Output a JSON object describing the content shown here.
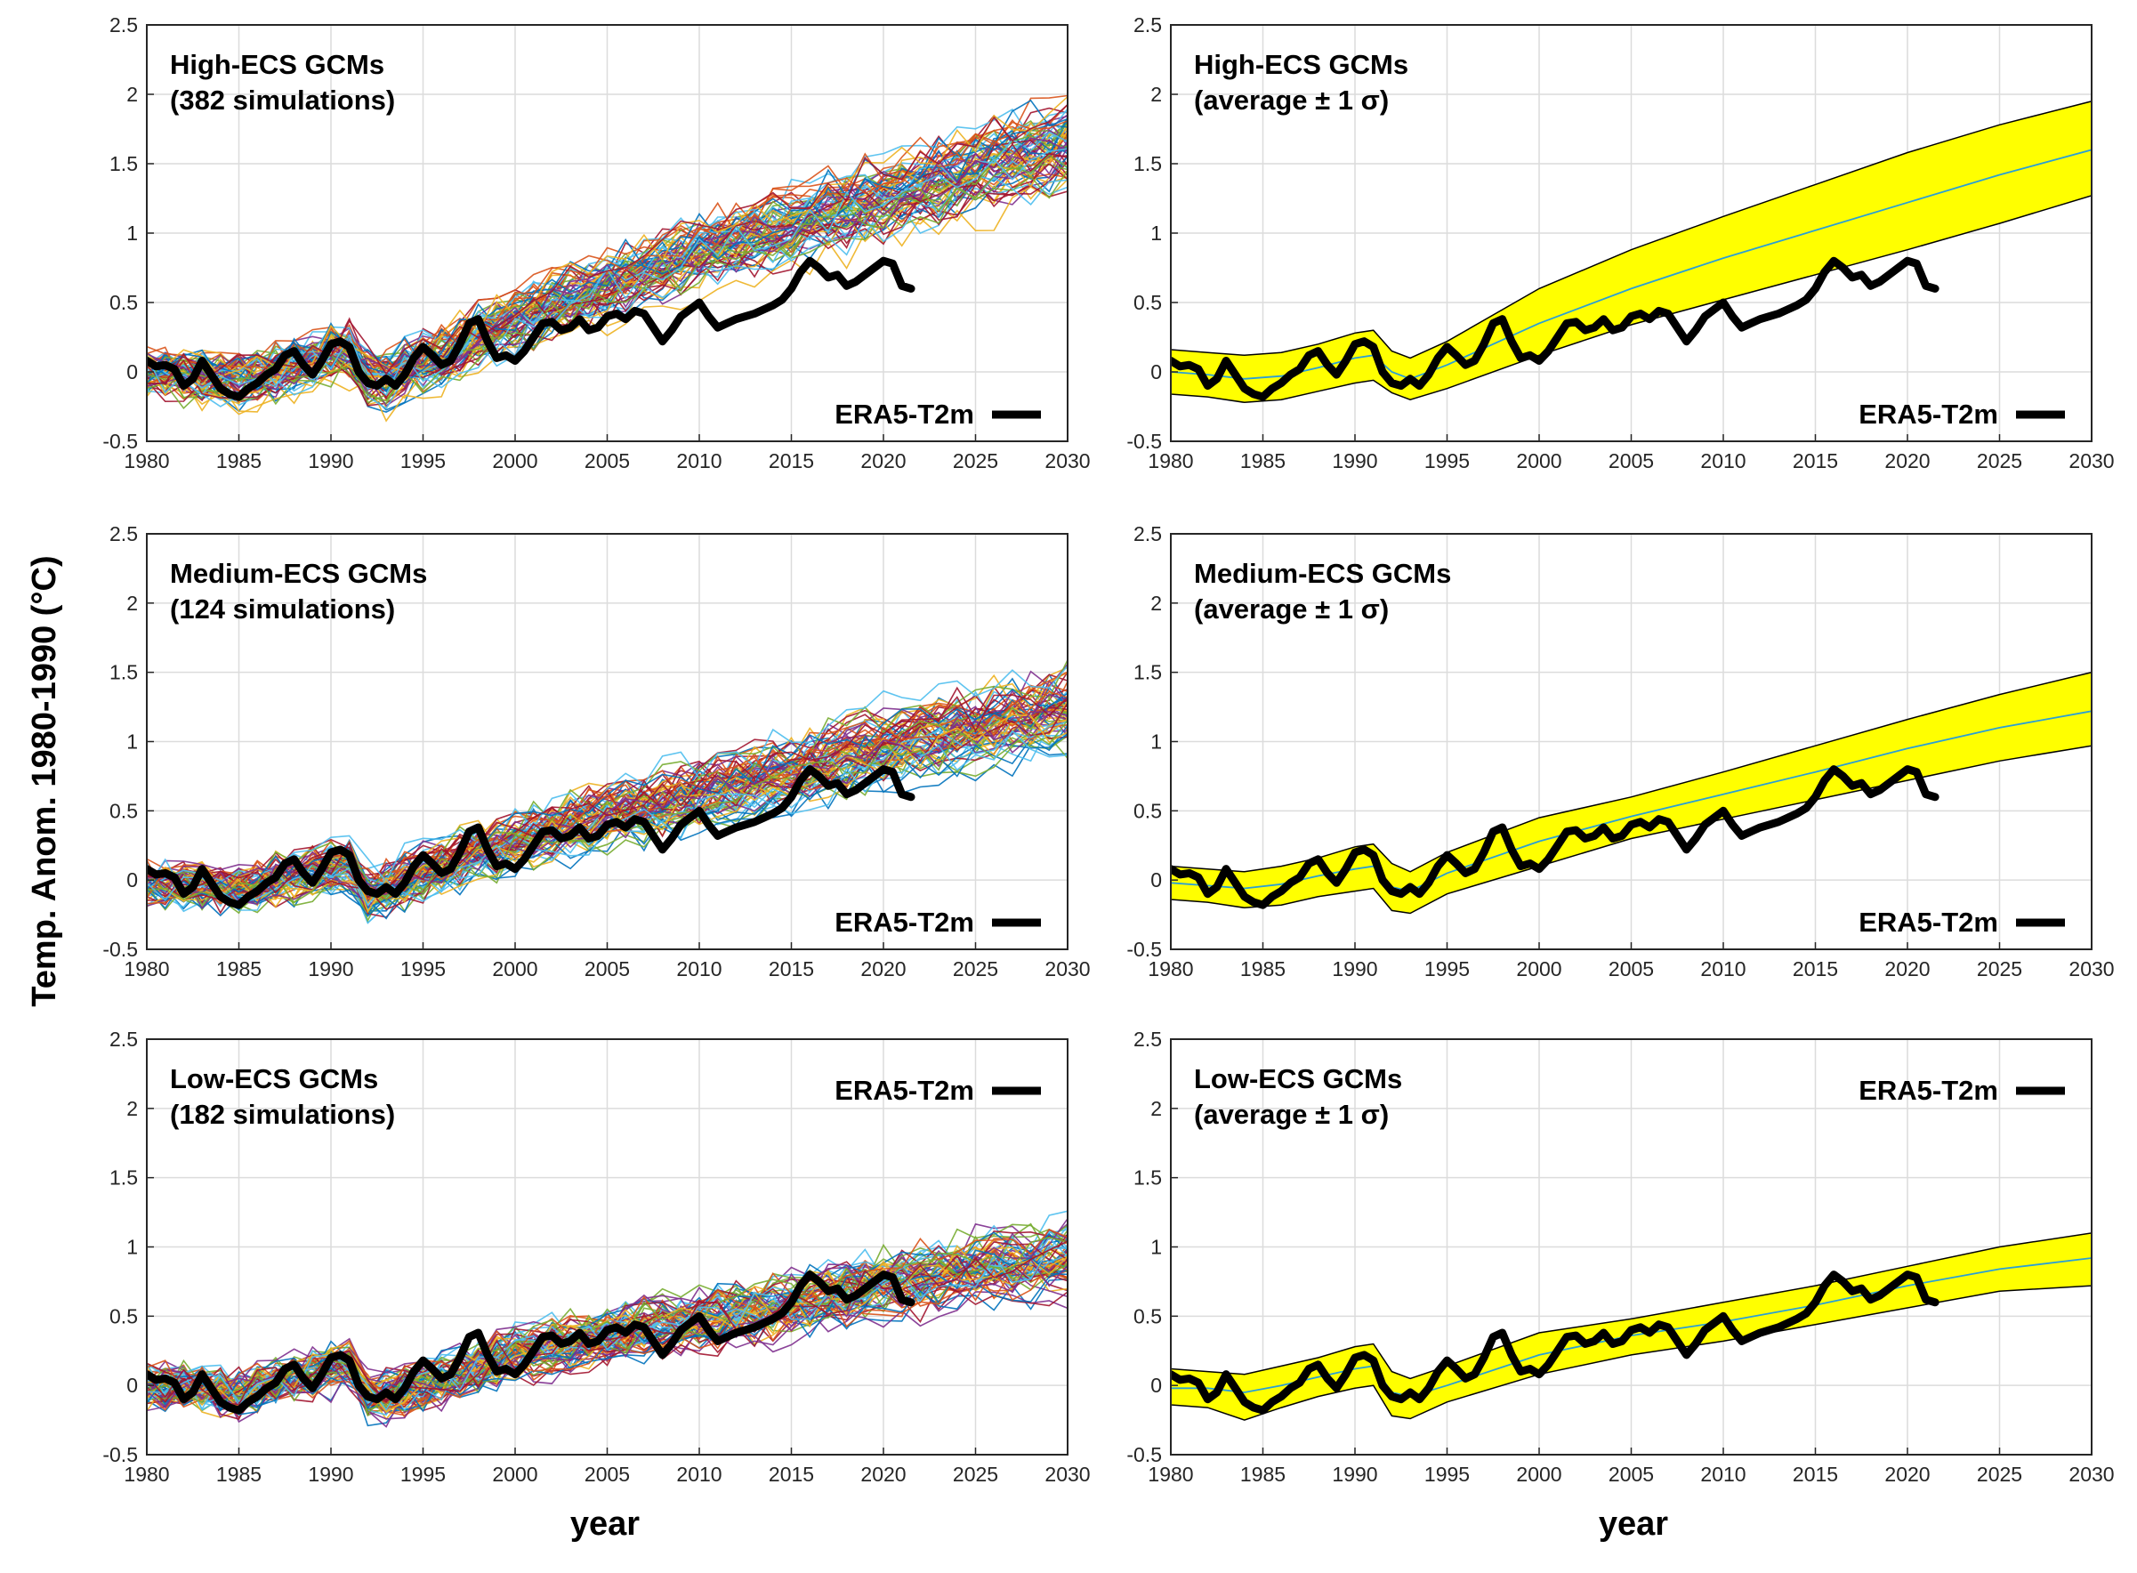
{
  "figure": {
    "ylabel": "Temp. Anom. 1980-1990 (°C)",
    "xlabel": "year",
    "colors": {
      "observation": "#000000",
      "band_fill": "#ffff00",
      "band_edge": "#000000",
      "mean_line": "#2a9fd6",
      "simulations": [
        "#0072bd",
        "#d95319",
        "#edb120",
        "#7e2f8e",
        "#77ac30",
        "#4dbeee",
        "#a2142f"
      ]
    }
  },
  "chart_data": [
    {
      "type": "line",
      "id": "high-ensemble",
      "title_lines": [
        "High-ECS GCMs",
        "(382 simulations)"
      ],
      "legend": "ERA5-T2m",
      "legend_position": "bottom-right",
      "ensemble_size": 382,
      "xlim": [
        1980,
        2030
      ],
      "ylim": [
        -0.5,
        2.5
      ],
      "xticks": [
        "1980",
        "1985",
        "1990",
        "1995",
        "2000",
        "2005",
        "2010",
        "2015",
        "2020",
        "2025",
        "2030"
      ],
      "yticks": [
        "-0.5",
        "0",
        "0.5",
        "1",
        "1.5",
        "2",
        "2.5"
      ],
      "grid": true,
      "ensemble_trend": {
        "x": [
          1980,
          1985,
          1990,
          1991,
          1992,
          1993,
          1995,
          2000,
          2005,
          2010,
          2015,
          2020,
          2025,
          2030
        ],
        "y": [
          -0.02,
          -0.08,
          0.1,
          0.12,
          -0.05,
          -0.08,
          0.05,
          0.35,
          0.6,
          0.82,
          1.02,
          1.22,
          1.42,
          1.6
        ],
        "spread": 0.28
      }
    },
    {
      "type": "area",
      "id": "high-band",
      "title_lines": [
        "High-ECS GCMs",
        "(average ± 1 σ)"
      ],
      "legend": "ERA5-T2m",
      "legend_position": "bottom-right",
      "xlim": [
        1980,
        2030
      ],
      "ylim": [
        -0.5,
        2.5
      ],
      "xticks": [
        "1980",
        "1985",
        "1990",
        "1995",
        "2000",
        "2005",
        "2010",
        "2015",
        "2020",
        "2025",
        "2030"
      ],
      "yticks": [
        "-0.5",
        "0",
        "0.5",
        "1",
        "1.5",
        "2",
        "2.5"
      ],
      "grid": true,
      "band": {
        "x": [
          1980,
          1982,
          1984,
          1986,
          1988,
          1990,
          1991,
          1992,
          1993,
          1995,
          2000,
          2005,
          2010,
          2015,
          2020,
          2025,
          2030
        ],
        "mean": [
          0.0,
          -0.02,
          -0.05,
          -0.03,
          0.03,
          0.1,
          0.12,
          0.0,
          -0.05,
          0.05,
          0.35,
          0.6,
          0.82,
          1.02,
          1.22,
          1.42,
          1.6
        ],
        "upper": [
          0.16,
          0.14,
          0.12,
          0.14,
          0.2,
          0.28,
          0.3,
          0.15,
          0.1,
          0.22,
          0.6,
          0.88,
          1.12,
          1.35,
          1.58,
          1.78,
          1.95
        ],
        "lower": [
          -0.16,
          -0.18,
          -0.22,
          -0.2,
          -0.14,
          -0.08,
          -0.06,
          -0.15,
          -0.2,
          -0.12,
          0.12,
          0.34,
          0.52,
          0.7,
          0.88,
          1.07,
          1.27
        ]
      }
    },
    {
      "type": "line",
      "id": "medium-ensemble",
      "title_lines": [
        "Medium-ECS GCMs",
        "(124 simulations)"
      ],
      "legend": "ERA5-T2m",
      "legend_position": "bottom-right",
      "ensemble_size": 124,
      "xlim": [
        1980,
        2030
      ],
      "ylim": [
        -0.5,
        2.5
      ],
      "xticks": [
        "1980",
        "1985",
        "1990",
        "1995",
        "2000",
        "2005",
        "2010",
        "2015",
        "2020",
        "2025",
        "2030"
      ],
      "yticks": [
        "-0.5",
        "0",
        "0.5",
        "1",
        "1.5",
        "2",
        "2.5"
      ],
      "grid": true,
      "ensemble_trend": {
        "x": [
          1980,
          1985,
          1990,
          1991,
          1992,
          1993,
          1995,
          2000,
          2005,
          2010,
          2015,
          2020,
          2025,
          2030
        ],
        "y": [
          -0.02,
          -0.06,
          0.08,
          0.1,
          -0.1,
          -0.06,
          0.05,
          0.28,
          0.46,
          0.62,
          0.78,
          0.95,
          1.1,
          1.22
        ],
        "spread": 0.25
      }
    },
    {
      "type": "area",
      "id": "medium-band",
      "title_lines": [
        "Medium-ECS GCMs",
        "(average ± 1 σ)"
      ],
      "legend": "ERA5-T2m",
      "legend_position": "bottom-right",
      "xlim": [
        1980,
        2030
      ],
      "ylim": [
        -0.5,
        2.5
      ],
      "xticks": [
        "1980",
        "1985",
        "1990",
        "1995",
        "2000",
        "2005",
        "2010",
        "2015",
        "2020",
        "2025",
        "2030"
      ],
      "yticks": [
        "-0.5",
        "0",
        "0.5",
        "1",
        "1.5",
        "2",
        "2.5"
      ],
      "grid": true,
      "band": {
        "x": [
          1980,
          1982,
          1984,
          1986,
          1988,
          1990,
          1991,
          1992,
          1993,
          1995,
          2000,
          2005,
          2010,
          2015,
          2020,
          2025,
          2030
        ],
        "mean": [
          -0.02,
          -0.04,
          -0.06,
          -0.03,
          0.03,
          0.08,
          0.1,
          -0.05,
          -0.08,
          0.05,
          0.28,
          0.46,
          0.62,
          0.78,
          0.95,
          1.1,
          1.22
        ],
        "upper": [
          0.1,
          0.08,
          0.06,
          0.1,
          0.16,
          0.24,
          0.26,
          0.12,
          0.06,
          0.2,
          0.45,
          0.6,
          0.78,
          0.97,
          1.16,
          1.34,
          1.5
        ],
        "lower": [
          -0.14,
          -0.16,
          -0.2,
          -0.18,
          -0.12,
          -0.08,
          -0.06,
          -0.22,
          -0.24,
          -0.1,
          0.1,
          0.3,
          0.44,
          0.58,
          0.72,
          0.86,
          0.97
        ]
      }
    },
    {
      "type": "line",
      "id": "low-ensemble",
      "title_lines": [
        "Low-ECS GCMs",
        "(182 simulations)"
      ],
      "legend": "ERA5-T2m",
      "legend_position": "top-right",
      "ensemble_size": 182,
      "xlim": [
        1980,
        2030
      ],
      "ylim": [
        -0.5,
        2.5
      ],
      "xticks": [
        "1980",
        "1985",
        "1990",
        "1995",
        "2000",
        "2005",
        "2010",
        "2015",
        "2020",
        "2025",
        "2030"
      ],
      "yticks": [
        "-0.5",
        "0",
        "0.5",
        "1",
        "1.5",
        "2",
        "2.5"
      ],
      "grid": true,
      "ensemble_trend": {
        "x": [
          1980,
          1985,
          1990,
          1991,
          1992,
          1993,
          1995,
          2000,
          2005,
          2010,
          2015,
          2020,
          2025,
          2030
        ],
        "y": [
          0.0,
          -0.05,
          0.12,
          0.14,
          -0.08,
          -0.08,
          0.0,
          0.22,
          0.36,
          0.46,
          0.58,
          0.72,
          0.84,
          0.92
        ],
        "spread": 0.2
      }
    },
    {
      "type": "area",
      "id": "low-band",
      "title_lines": [
        "Low-ECS GCMs",
        "(average ± 1 σ)"
      ],
      "legend": "ERA5-T2m",
      "legend_position": "top-right",
      "xlim": [
        1980,
        2030
      ],
      "ylim": [
        -0.5,
        2.5
      ],
      "xticks": [
        "1980",
        "1985",
        "1990",
        "1995",
        "2000",
        "2005",
        "2010",
        "2015",
        "2020",
        "2025",
        "2030"
      ],
      "yticks": [
        "-0.5",
        "0",
        "0.5",
        "1",
        "1.5",
        "2",
        "2.5"
      ],
      "grid": true,
      "band": {
        "x": [
          1980,
          1982,
          1984,
          1986,
          1988,
          1990,
          1991,
          1992,
          1993,
          1995,
          2000,
          2005,
          2010,
          2015,
          2020,
          2025,
          2030
        ],
        "mean": [
          -0.02,
          -0.02,
          -0.05,
          0.0,
          0.06,
          0.12,
          0.14,
          -0.05,
          -0.08,
          0.0,
          0.22,
          0.36,
          0.46,
          0.58,
          0.72,
          0.84,
          0.92
        ],
        "upper": [
          0.12,
          0.1,
          0.08,
          0.14,
          0.2,
          0.28,
          0.3,
          0.1,
          0.05,
          0.14,
          0.38,
          0.48,
          0.6,
          0.72,
          0.86,
          1.0,
          1.1
        ],
        "lower": [
          -0.14,
          -0.16,
          -0.25,
          -0.16,
          -0.08,
          -0.02,
          0.0,
          -0.22,
          -0.24,
          -0.12,
          0.08,
          0.22,
          0.32,
          0.44,
          0.56,
          0.68,
          0.72
        ]
      }
    }
  ],
  "observation": {
    "name": "ERA5-T2m",
    "x": [
      1980,
      1980.5,
      1981,
      1981.5,
      1982,
      1982.5,
      1983,
      1983.5,
      1984,
      1984.5,
      1985,
      1985.5,
      1986,
      1986.5,
      1987,
      1987.5,
      1988,
      1988.5,
      1989,
      1989.5,
      1990,
      1990.5,
      1991,
      1991.5,
      1992,
      1992.5,
      1993,
      1993.5,
      1994,
      1994.5,
      1995,
      1995.5,
      1996,
      1996.5,
      1997,
      1997.5,
      1998,
      1998.5,
      1999,
      1999.5,
      2000,
      2000.5,
      2001,
      2001.5,
      2002,
      2002.5,
      2003,
      2003.5,
      2004,
      2004.5,
      2005,
      2005.5,
      2006,
      2006.5,
      2007,
      2007.5,
      2008,
      2008.5,
      2009,
      2009.5,
      2010,
      2010.5,
      2011,
      2011.5,
      2012,
      2012.5,
      2013,
      2013.5,
      2014,
      2014.5,
      2015,
      2015.5,
      2016,
      2016.5,
      2017,
      2017.5,
      2018,
      2018.5,
      2019,
      2019.5,
      2020,
      2020.5,
      2021,
      2021.5
    ],
    "y": [
      0.08,
      0.04,
      0.05,
      0.02,
      -0.1,
      -0.05,
      0.08,
      -0.02,
      -0.12,
      -0.16,
      -0.18,
      -0.12,
      -0.08,
      -0.02,
      0.02,
      0.12,
      0.15,
      0.05,
      -0.02,
      0.08,
      0.2,
      0.22,
      0.18,
      0.0,
      -0.08,
      -0.1,
      -0.05,
      -0.1,
      -0.02,
      0.1,
      0.18,
      0.12,
      0.05,
      0.08,
      0.2,
      0.35,
      0.38,
      0.22,
      0.1,
      0.12,
      0.08,
      0.15,
      0.25,
      0.35,
      0.36,
      0.3,
      0.32,
      0.38,
      0.3,
      0.32,
      0.4,
      0.42,
      0.38,
      0.44,
      0.42,
      0.32,
      0.22,
      0.3,
      0.4,
      0.45,
      0.5,
      0.4,
      0.32,
      0.35,
      0.38,
      0.4,
      0.42,
      0.45,
      0.48,
      0.52,
      0.6,
      0.72,
      0.8,
      0.75,
      0.68,
      0.7,
      0.62,
      0.65,
      0.7,
      0.75,
      0.8,
      0.78,
      0.62,
      0.6
    ]
  }
}
